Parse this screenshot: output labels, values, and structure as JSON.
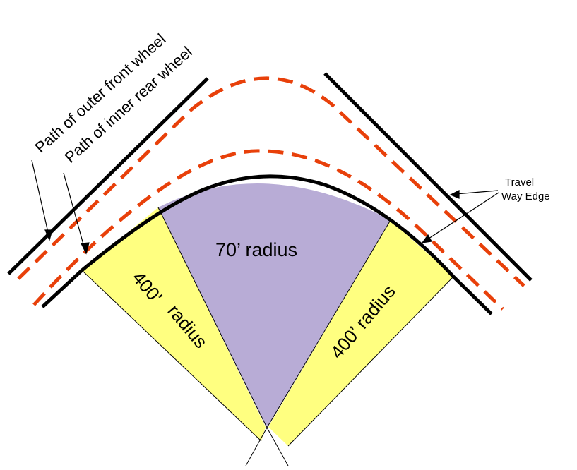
{
  "labels": {
    "path_outer_front": "Path of outer front wheel",
    "path_inner_rear": "Path of inner rear wheel",
    "travel_way_line1": "Travel",
    "travel_way_line2": "Way Edge",
    "center_radius": "70’ radius",
    "left_radius_value": "400’",
    "left_radius_word": "radius",
    "right_radius": "400’ radius"
  },
  "colors": {
    "edge_line": "#000000",
    "wheel_path": "#e8400a",
    "center_sector": "#b8acd6",
    "side_sector": "#ffff80"
  }
}
